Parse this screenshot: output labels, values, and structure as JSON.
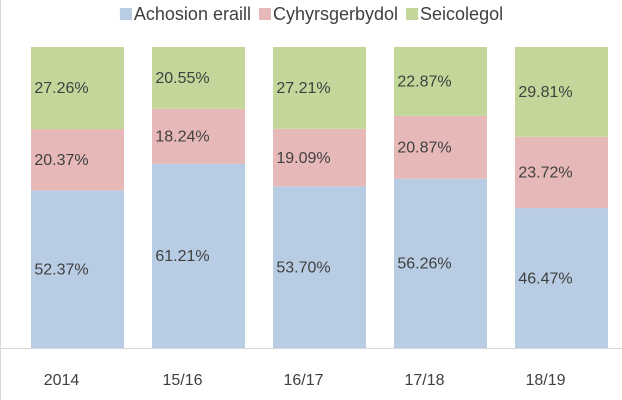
{
  "chart_data": {
    "type": "stacked_bar",
    "categories": [
      "2014",
      "15/16",
      "16/17",
      "17/18",
      "18/19"
    ],
    "series": [
      {
        "name": "Achosion eraill",
        "color": "#b8cce4",
        "values": [
          52.37,
          61.21,
          53.7,
          56.26,
          46.47
        ],
        "value_labels": [
          "52.37%",
          "61.21%",
          "53.70%",
          "56.26%",
          "46.47%"
        ]
      },
      {
        "name": "Cyhyrsgerbydol",
        "color": "#e6b9b8",
        "values": [
          20.37,
          18.24,
          19.09,
          20.87,
          23.72
        ],
        "value_labels": [
          "20.37%",
          "18.24%",
          "19.09%",
          "20.87%",
          "23.72%"
        ]
      },
      {
        "name": "Seicolegol",
        "color": "#c4d79b",
        "values": [
          27.26,
          20.55,
          27.21,
          22.87,
          29.81
        ],
        "value_labels": [
          "27.26%",
          "20.55%",
          "27.21%",
          "22.87%",
          "29.81%"
        ]
      }
    ],
    "ylim": [
      0,
      100
    ],
    "legend": "top"
  }
}
